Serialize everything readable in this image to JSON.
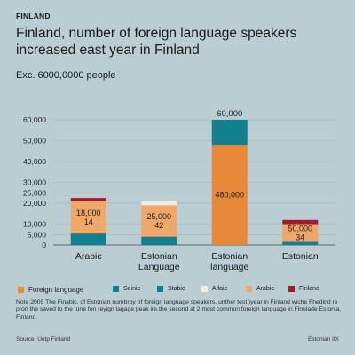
{
  "header": {
    "kicker": "FINLAND",
    "title": "Finland,  number of foreign language speakers increased east year in Finland",
    "subtitle": "Exc.  6000,0000 people"
  },
  "legend": [
    {
      "label": "Foreign language",
      "color": "#e8893a"
    },
    {
      "label": "Seinic",
      "color": "#127f8f"
    },
    {
      "label": "Stabic",
      "color": "#127f8f"
    },
    {
      "label": "Aifaic",
      "color": "#f1ece0"
    },
    {
      "label": "Arabic",
      "color": "#f0a86a"
    },
    {
      "label": "Finland",
      "color": "#a3192f"
    }
  ],
  "note": "Note 2005 The Finabic, of Estonian numbroy of foreign language speakers. unther test )year in Finland wiche Fhedind re prori the saved to the tune fon reyign lagage peak ire.the second at 2 most common foreign language in Finulade Estonia, Finland.",
  "source": "Source: Uotp Finland",
  "credit": "Estonian IIX",
  "chart_data": {
    "type": "bar",
    "categories": [
      "Arabic",
      "Estonian Language",
      "Estonian language",
      "Estonian"
    ],
    "category_lines": [
      [
        "Arabic"
      ],
      [
        "Estonian",
        "Language"
      ],
      [
        "Estonian",
        "language"
      ],
      [
        "Estonian"
      ]
    ],
    "ylim": [
      0,
      60000
    ],
    "yticks": [
      0,
      5000,
      10000,
      20000,
      25000,
      30000,
      40000,
      50000,
      60000
    ],
    "ytick_labels": [
      "0",
      "5,000",
      "10,000",
      "20,000",
      "25,000",
      "30,000",
      "40,000",
      "50,000",
      "60,000"
    ],
    "grid": true,
    "stacks": [
      {
        "category": "Arabic",
        "segments": [
          {
            "value": 5500,
            "color": "#127f8f"
          },
          {
            "value": 15500,
            "color": "#f0a86a"
          },
          {
            "value": 1500,
            "color": "#a3192f"
          }
        ],
        "labels": [
          "18,000",
          "14"
        ]
      },
      {
        "category": "Estonian Language",
        "segments": [
          {
            "value": 4000,
            "color": "#127f8f"
          },
          {
            "value": 15000,
            "color": "#f0a86a"
          },
          {
            "value": 2000,
            "color": "#f1ece0"
          }
        ],
        "labels": [
          "25,000",
          "42"
        ]
      },
      {
        "category": "Estonian language",
        "segments": [
          {
            "value": 0,
            "color": "#127f8f"
          },
          {
            "value": 48000,
            "color": "#e8893a"
          },
          {
            "value": 12000,
            "color": "#127f8f"
          }
        ],
        "labels": [
          "480,000"
        ],
        "top_label": "60,000"
      },
      {
        "category": "Estonian",
        "segments": [
          {
            "value": 1500,
            "color": "#127f8f"
          },
          {
            "value": 8500,
            "color": "#f0a86a"
          },
          {
            "value": 2000,
            "color": "#a3192f"
          }
        ],
        "labels": [
          "50,000",
          "34"
        ]
      }
    ]
  }
}
